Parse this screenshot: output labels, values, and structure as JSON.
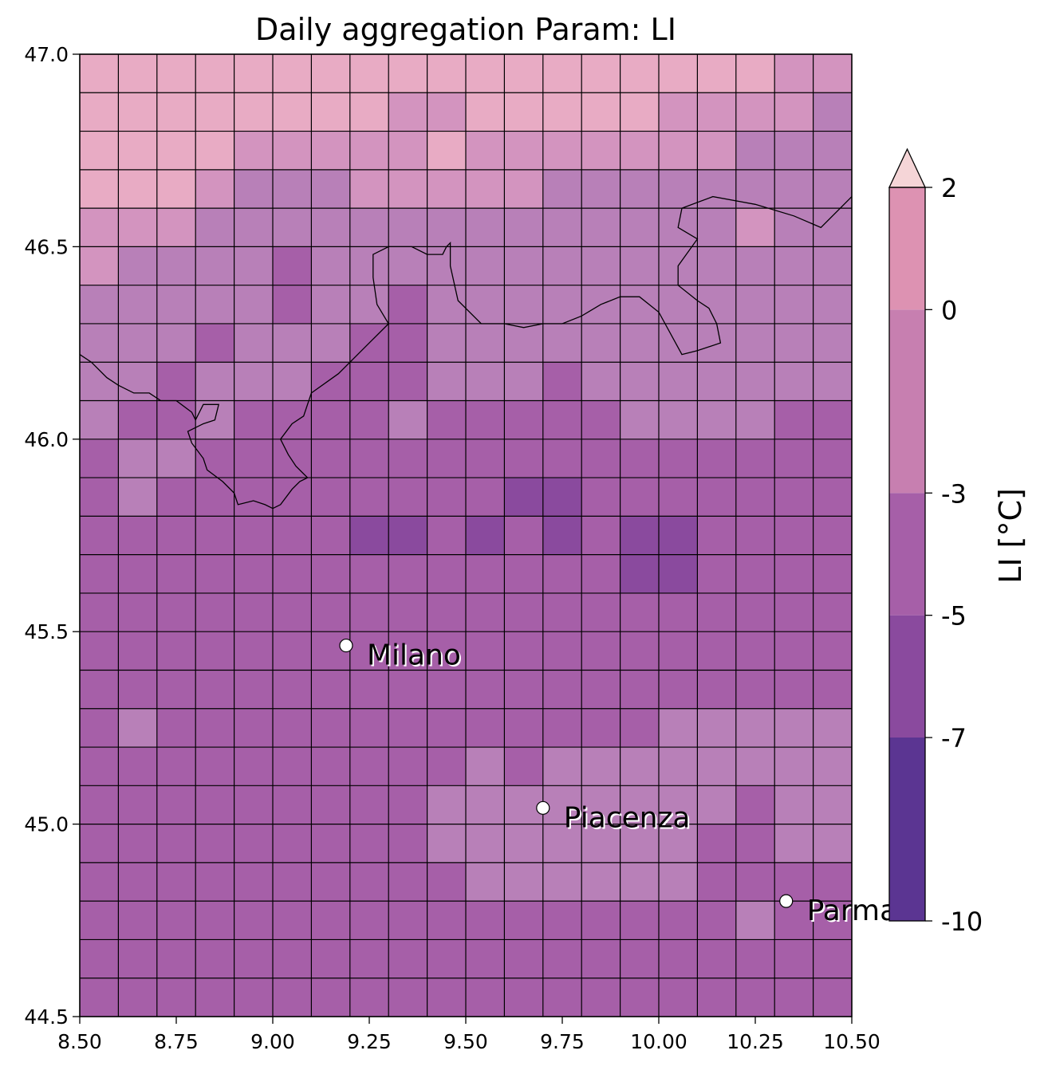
{
  "chart_data": {
    "type": "heatmap",
    "title": "Daily aggregation Param: LI",
    "xlabel": "",
    "ylabel": "",
    "xlim": [
      8.5,
      10.5
    ],
    "ylim": [
      44.5,
      47.0
    ],
    "x_ticks": [
      "8.50",
      "8.75",
      "9.00",
      "9.25",
      "9.50",
      "9.75",
      "10.00",
      "10.25",
      "10.50"
    ],
    "y_ticks": [
      "44.5",
      "45.0",
      "45.5",
      "46.0",
      "46.5",
      "47.0"
    ],
    "grid": {
      "lon_edges": [
        8.5,
        8.6,
        8.7,
        8.8,
        8.9,
        9.0,
        9.1,
        9.2,
        9.3,
        9.4,
        9.5,
        9.6,
        9.7,
        9.8,
        9.9,
        10.0,
        10.1,
        10.2,
        10.3,
        10.4,
        10.5
      ],
      "lat_top": 47.0,
      "lat_step": 0.1,
      "note_rows": "rows ordered north to south, class index per cell",
      "classes": [
        [
          5,
          5,
          5,
          5,
          5,
          5,
          5,
          5,
          5,
          5,
          5,
          5,
          5,
          5,
          5,
          5,
          5,
          5,
          4,
          4
        ],
        [
          5,
          5,
          5,
          5,
          5,
          5,
          5,
          5,
          4,
          4,
          5,
          5,
          5,
          5,
          5,
          4,
          4,
          4,
          4,
          3
        ],
        [
          5,
          5,
          5,
          5,
          4,
          4,
          4,
          4,
          4,
          5,
          4,
          4,
          4,
          4,
          4,
          4,
          4,
          3,
          3,
          3
        ],
        [
          5,
          5,
          5,
          4,
          3,
          3,
          3,
          4,
          4,
          4,
          4,
          4,
          3,
          3,
          3,
          3,
          3,
          3,
          3,
          3
        ],
        [
          4,
          4,
          4,
          3,
          3,
          3,
          3,
          3,
          3,
          3,
          3,
          3,
          3,
          3,
          3,
          3,
          3,
          4,
          3,
          3
        ],
        [
          4,
          3,
          3,
          3,
          3,
          2,
          3,
          3,
          3,
          3,
          3,
          3,
          3,
          3,
          3,
          3,
          3,
          3,
          3,
          3
        ],
        [
          3,
          3,
          3,
          3,
          3,
          2,
          3,
          3,
          2,
          3,
          3,
          3,
          3,
          3,
          3,
          3,
          3,
          3,
          3,
          3
        ],
        [
          3,
          3,
          3,
          2,
          3,
          3,
          3,
          2,
          2,
          3,
          3,
          3,
          3,
          3,
          3,
          3,
          3,
          3,
          3,
          3
        ],
        [
          3,
          3,
          2,
          3,
          3,
          3,
          2,
          2,
          2,
          3,
          3,
          3,
          2,
          3,
          3,
          3,
          3,
          3,
          3,
          3
        ],
        [
          3,
          2,
          2,
          3,
          2,
          2,
          2,
          2,
          3,
          2,
          2,
          2,
          2,
          2,
          3,
          3,
          3,
          3,
          2,
          2
        ],
        [
          2,
          3,
          3,
          2,
          2,
          2,
          2,
          2,
          2,
          2,
          2,
          2,
          2,
          2,
          2,
          2,
          2,
          2,
          2,
          2
        ],
        [
          2,
          3,
          2,
          2,
          2,
          2,
          2,
          2,
          2,
          2,
          2,
          1,
          1,
          2,
          2,
          2,
          2,
          2,
          2,
          2
        ],
        [
          2,
          2,
          2,
          2,
          2,
          2,
          2,
          1,
          1,
          2,
          1,
          2,
          1,
          2,
          1,
          1,
          2,
          2,
          2,
          2
        ],
        [
          2,
          2,
          2,
          2,
          2,
          2,
          2,
          2,
          2,
          2,
          2,
          2,
          2,
          2,
          1,
          1,
          2,
          2,
          2,
          2
        ],
        [
          2,
          2,
          2,
          2,
          2,
          2,
          2,
          2,
          2,
          2,
          2,
          2,
          2,
          2,
          2,
          2,
          2,
          2,
          2,
          2
        ],
        [
          2,
          2,
          2,
          2,
          2,
          2,
          2,
          2,
          2,
          2,
          2,
          2,
          2,
          2,
          2,
          2,
          2,
          2,
          2,
          2
        ],
        [
          2,
          2,
          2,
          2,
          2,
          2,
          2,
          2,
          2,
          2,
          2,
          2,
          2,
          2,
          2,
          2,
          2,
          2,
          2,
          2
        ],
        [
          2,
          3,
          2,
          2,
          2,
          2,
          2,
          2,
          2,
          2,
          2,
          2,
          2,
          2,
          2,
          3,
          3,
          3,
          3,
          3
        ],
        [
          2,
          2,
          2,
          2,
          2,
          2,
          2,
          2,
          2,
          2,
          3,
          2,
          3,
          3,
          3,
          3,
          3,
          3,
          3,
          3
        ],
        [
          2,
          2,
          2,
          2,
          2,
          2,
          2,
          2,
          2,
          3,
          3,
          3,
          3,
          3,
          3,
          3,
          3,
          2,
          3,
          3
        ],
        [
          2,
          2,
          2,
          2,
          2,
          2,
          2,
          2,
          2,
          3,
          3,
          3,
          3,
          3,
          3,
          3,
          2,
          2,
          3,
          3
        ],
        [
          2,
          2,
          2,
          2,
          2,
          2,
          2,
          2,
          2,
          2,
          3,
          3,
          3,
          3,
          3,
          3,
          2,
          2,
          2,
          2
        ],
        [
          2,
          2,
          2,
          2,
          2,
          2,
          2,
          2,
          2,
          2,
          2,
          2,
          2,
          2,
          2,
          2,
          2,
          3,
          2,
          2
        ],
        [
          2,
          2,
          2,
          2,
          2,
          2,
          2,
          2,
          2,
          2,
          2,
          2,
          2,
          2,
          2,
          2,
          2,
          2,
          2,
          2
        ],
        [
          2,
          2,
          2,
          2,
          2,
          2,
          2,
          2,
          2,
          2,
          2,
          2,
          2,
          2,
          2,
          2,
          2,
          2,
          2,
          2
        ]
      ]
    },
    "class_colors": [
      "#5b3592",
      "#8a4a9e",
      "#a65fa8",
      "#b880b8",
      "#d394bf",
      "#e8abc4",
      "#f7c7cf"
    ],
    "cities": [
      {
        "name": "Milano",
        "lon": 9.19,
        "lat": 45.464
      },
      {
        "name": "Piacenza",
        "lon": 9.7,
        "lat": 45.042
      },
      {
        "name": "Parma",
        "lon": 10.33,
        "lat": 44.8
      }
    ],
    "border": [
      [
        8.5,
        46.22
      ],
      [
        8.53,
        46.2
      ],
      [
        8.57,
        46.16
      ],
      [
        8.6,
        46.14
      ],
      [
        8.64,
        46.12
      ],
      [
        8.68,
        46.12
      ],
      [
        8.71,
        46.1
      ],
      [
        8.75,
        46.1
      ],
      [
        8.79,
        46.07
      ],
      [
        8.8,
        46.05
      ],
      [
        8.82,
        46.09
      ],
      [
        8.86,
        46.09
      ],
      [
        8.85,
        46.05
      ],
      [
        8.82,
        46.04
      ],
      [
        8.78,
        46.02
      ],
      [
        8.79,
        45.99
      ],
      [
        8.82,
        45.95
      ],
      [
        8.83,
        45.92
      ],
      [
        8.87,
        45.89
      ],
      [
        8.9,
        45.86
      ],
      [
        8.91,
        45.83
      ],
      [
        8.95,
        45.84
      ],
      [
        8.98,
        45.83
      ],
      [
        9.0,
        45.82
      ],
      [
        9.02,
        45.83
      ],
      [
        9.05,
        45.87
      ],
      [
        9.07,
        45.89
      ],
      [
        9.09,
        45.9
      ],
      [
        9.06,
        45.93
      ],
      [
        9.04,
        45.96
      ],
      [
        9.02,
        46.0
      ],
      [
        9.05,
        46.04
      ],
      [
        9.08,
        46.06
      ],
      [
        9.1,
        46.12
      ],
      [
        9.17,
        46.17
      ],
      [
        9.22,
        46.22
      ],
      [
        9.25,
        46.25
      ],
      [
        9.3,
        46.3
      ],
      [
        9.27,
        46.35
      ],
      [
        9.26,
        46.42
      ],
      [
        9.26,
        46.48
      ],
      [
        9.3,
        46.5
      ],
      [
        9.36,
        46.5
      ],
      [
        9.4,
        46.48
      ],
      [
        9.44,
        46.48
      ],
      [
        9.45,
        46.5
      ],
      [
        9.46,
        46.51
      ],
      [
        9.46,
        46.45
      ],
      [
        9.48,
        46.36
      ],
      [
        9.54,
        46.3
      ],
      [
        9.6,
        46.3
      ],
      [
        9.65,
        46.29
      ],
      [
        9.7,
        46.3
      ],
      [
        9.75,
        46.3
      ],
      [
        9.8,
        46.32
      ],
      [
        9.85,
        46.35
      ],
      [
        9.9,
        46.37
      ],
      [
        9.95,
        46.37
      ],
      [
        10.0,
        46.33
      ],
      [
        10.06,
        46.22
      ],
      [
        10.1,
        46.23
      ],
      [
        10.16,
        46.25
      ],
      [
        10.15,
        46.3
      ],
      [
        10.13,
        46.34
      ],
      [
        10.1,
        46.36
      ],
      [
        10.05,
        46.4
      ],
      [
        10.05,
        46.45
      ],
      [
        10.1,
        46.52
      ],
      [
        10.05,
        46.55
      ],
      [
        10.06,
        46.6
      ],
      [
        10.14,
        46.63
      ],
      [
        10.25,
        46.61
      ],
      [
        10.35,
        46.58
      ],
      [
        10.42,
        46.55
      ],
      [
        10.5,
        46.63
      ]
    ],
    "colorbar": {
      "label": "LI [°C]",
      "ticks": [
        "2",
        "0",
        "-3",
        "-5",
        "-7",
        "-10"
      ],
      "segment_colors": [
        "#5b3592",
        "#8a4a9e",
        "#a65fa8",
        "#c77fb0",
        "#dd92b2"
      ],
      "extend_color": "#f5d5d7",
      "extend": "max"
    }
  }
}
